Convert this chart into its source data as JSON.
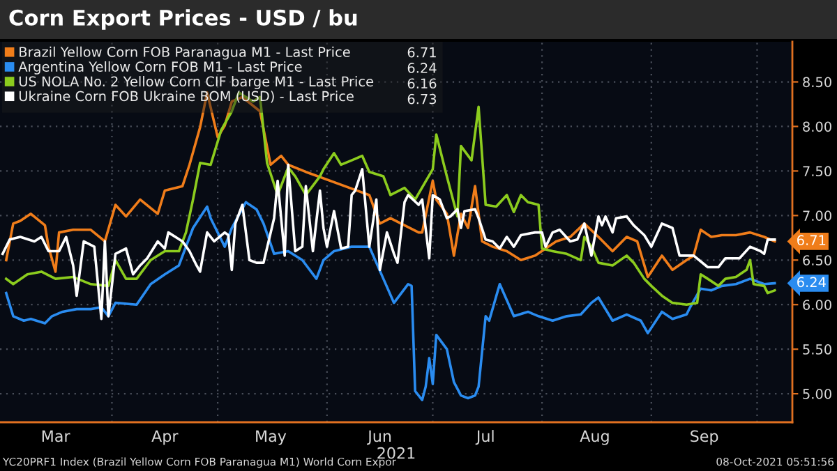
{
  "chart_data": {
    "type": "line",
    "title": "Corn Export Prices - USD / bu",
    "xlabel": "2021",
    "xlim": [
      "2021-02-28T06:00",
      "2021-10-11"
    ],
    "xticks": [
      {
        "value": "2021-03-16",
        "label": "Mar"
      },
      {
        "value": "2021-04-01",
        "label": null
      },
      {
        "value": "2021-04-16",
        "label": "Apr"
      },
      {
        "value": "2021-05-01",
        "label": null
      },
      {
        "value": "2021-05-16",
        "label": "May"
      },
      {
        "value": "2021-06-01",
        "label": null
      },
      {
        "value": "2021-06-16",
        "label": "Jun"
      },
      {
        "value": "2021-07-01",
        "label": null
      },
      {
        "value": "2021-07-16",
        "label": "Jul"
      },
      {
        "value": "2021-08-01",
        "label": null
      },
      {
        "value": "2021-08-16",
        "label": "Aug"
      },
      {
        "value": "2021-09-01",
        "label": null
      },
      {
        "value": "2021-09-16",
        "label": "Sep"
      },
      {
        "value": "2021-10-01",
        "label": null
      }
    ],
    "ylim": [
      4.68,
      8.95
    ],
    "yticks": [
      {
        "value": 5.0,
        "label": "5.00"
      },
      {
        "value": 5.5,
        "label": "5.50"
      },
      {
        "value": 6.0,
        "label": "6.00"
      },
      {
        "value": 6.5,
        "label": "6.50"
      },
      {
        "value": 7.0,
        "label": "7.00"
      },
      {
        "value": 7.5,
        "label": "7.50"
      },
      {
        "value": 8.0,
        "label": "8.00"
      },
      {
        "value": 8.5,
        "label": "8.50"
      }
    ],
    "grid": true,
    "legend": "top left",
    "line_style": "solid",
    "series": [
      {
        "name": "Brazil Yellow Corn FOB Paranagua M1 - Last Price",
        "color": "#f07d1a",
        "x": [
          "2021-03-02",
          "2021-03-04",
          "2021-03-06",
          "2021-03-09",
          "2021-03-13",
          "2021-03-14",
          "2021-03-16",
          "2021-03-17",
          "2021-03-21",
          "2021-03-26",
          "2021-03-30",
          "2021-04-02",
          "2021-04-05",
          "2021-04-09",
          "2021-04-14",
          "2021-04-16",
          "2021-04-21",
          "2021-04-23",
          "2021-04-26",
          "2021-04-28",
          "2021-05-01",
          "2021-05-03",
          "2021-05-05",
          "2021-05-08",
          "2021-05-13",
          "2021-05-16",
          "2021-05-19",
          "2021-05-21",
          "2021-05-26",
          "2021-06-13",
          "2021-06-16",
          "2021-06-19",
          "2021-06-23",
          "2021-06-27",
          "2021-06-28",
          "2021-07-01",
          "2021-07-02",
          "2021-07-05",
          "2021-07-07",
          "2021-07-09",
          "2021-07-11",
          "2021-07-13",
          "2021-07-15",
          "2021-07-18",
          "2021-07-22",
          "2021-07-26",
          "2021-07-30",
          "2021-08-02",
          "2021-08-05",
          "2021-08-09",
          "2021-08-13",
          "2021-08-17",
          "2021-08-21",
          "2021-08-25",
          "2021-08-28",
          "2021-08-31",
          "2021-09-04",
          "2021-09-07",
          "2021-09-11",
          "2021-09-13",
          "2021-09-15",
          "2021-09-18",
          "2021-09-21",
          "2021-09-25",
          "2021-09-29",
          "2021-10-03",
          "2021-10-06"
        ],
        "values": [
          6.5,
          6.91,
          6.94,
          7.02,
          6.89,
          6.65,
          6.37,
          6.81,
          6.84,
          6.84,
          6.71,
          7.12,
          6.99,
          7.18,
          7.02,
          7.28,
          7.33,
          7.57,
          7.99,
          8.38,
          7.88,
          8.01,
          8.28,
          8.33,
          8.17,
          7.57,
          7.67,
          7.57,
          7.49,
          7.23,
          6.91,
          6.97,
          6.89,
          6.81,
          6.81,
          7.39,
          7.18,
          7.02,
          6.55,
          7.02,
          6.86,
          7.33,
          6.71,
          6.65,
          6.6,
          6.5,
          6.55,
          6.63,
          6.71,
          6.76,
          6.91,
          6.76,
          6.6,
          6.76,
          6.71,
          6.31,
          6.55,
          6.39,
          6.5,
          6.55,
          6.84,
          6.76,
          6.78,
          6.78,
          6.81,
          6.76,
          6.71
        ]
      },
      {
        "name": "Argentina Yellow Corn FOB M1 - Last Price",
        "color": "#2a8cf0",
        "x": [
          "2021-03-02",
          "2021-03-04",
          "2021-03-07",
          "2021-03-09",
          "2021-03-13",
          "2021-03-15",
          "2021-03-18",
          "2021-03-22",
          "2021-03-26",
          "2021-03-29",
          "2021-03-31",
          "2021-04-02",
          "2021-04-08",
          "2021-04-12",
          "2021-04-16",
          "2021-04-20",
          "2021-04-24",
          "2021-04-28",
          "2021-04-29",
          "2021-05-03",
          "2021-05-05",
          "2021-05-09",
          "2021-05-12",
          "2021-05-14",
          "2021-05-17",
          "2021-05-21",
          "2021-05-25",
          "2021-05-29",
          "2021-05-31",
          "2021-06-03",
          "2021-06-08",
          "2021-06-13",
          "2021-06-17",
          "2021-06-20",
          "2021-06-24",
          "2021-06-25",
          "2021-06-26",
          "2021-06-28",
          "2021-06-29",
          "2021-06-30",
          "2021-07-01",
          "2021-07-02",
          "2021-07-05",
          "2021-07-07",
          "2021-07-09",
          "2021-07-11",
          "2021-07-13",
          "2021-07-14",
          "2021-07-16",
          "2021-07-17",
          "2021-07-20",
          "2021-07-24",
          "2021-07-28",
          "2021-07-31",
          "2021-08-04",
          "2021-08-08",
          "2021-08-12",
          "2021-08-15",
          "2021-08-17",
          "2021-08-21",
          "2021-08-25",
          "2021-08-29",
          "2021-08-31",
          "2021-09-04",
          "2021-09-07",
          "2021-09-11",
          "2021-09-12",
          "2021-09-15",
          "2021-09-18",
          "2021-09-21",
          "2021-09-25",
          "2021-09-29",
          "2021-10-03",
          "2021-10-06"
        ],
        "values": [
          6.13,
          5.87,
          5.82,
          5.84,
          5.79,
          5.87,
          5.92,
          5.95,
          5.95,
          5.97,
          5.87,
          6.02,
          6.0,
          6.23,
          6.34,
          6.44,
          6.86,
          7.1,
          6.97,
          6.65,
          6.86,
          7.15,
          7.07,
          6.91,
          6.57,
          6.6,
          6.5,
          6.29,
          6.5,
          6.6,
          6.65,
          6.65,
          6.29,
          6.02,
          6.23,
          6.21,
          5.03,
          4.93,
          5.08,
          5.4,
          5.11,
          5.66,
          5.5,
          5.13,
          4.98,
          4.95,
          4.98,
          5.08,
          5.87,
          5.82,
          6.23,
          5.87,
          5.92,
          5.87,
          5.82,
          5.87,
          5.89,
          6.02,
          6.08,
          5.82,
          5.89,
          5.82,
          5.68,
          5.92,
          5.84,
          5.89,
          5.97,
          6.18,
          6.16,
          6.21,
          6.23,
          6.29,
          6.23,
          6.24
        ]
      },
      {
        "name": "US NOLA No. 2 Yellow Corn CIF barge M1 - Last Price",
        "color": "#8ccc1e",
        "x": [
          "2021-03-02",
          "2021-03-04",
          "2021-03-08",
          "2021-03-12",
          "2021-03-16",
          "2021-03-21",
          "2021-03-26",
          "2021-03-31",
          "2021-04-02",
          "2021-04-05",
          "2021-04-08",
          "2021-04-12",
          "2021-04-16",
          "2021-04-20",
          "2021-04-22",
          "2021-04-24",
          "2021-04-26",
          "2021-04-29",
          "2021-05-02",
          "2021-05-05",
          "2021-05-07",
          "2021-05-11",
          "2021-05-13",
          "2021-05-15",
          "2021-05-18",
          "2021-05-21",
          "2021-05-23",
          "2021-05-26",
          "2021-05-30",
          "2021-05-31",
          "2021-06-03",
          "2021-06-05",
          "2021-06-08",
          "2021-06-11",
          "2021-06-13",
          "2021-06-17",
          "2021-06-19",
          "2021-06-23",
          "2021-06-26",
          "2021-07-01",
          "2021-07-02",
          "2021-07-05",
          "2021-07-08",
          "2021-07-09",
          "2021-07-12",
          "2021-07-14",
          "2021-07-16",
          "2021-07-19",
          "2021-07-22",
          "2021-07-24",
          "2021-07-26",
          "2021-07-28",
          "2021-07-31",
          "2021-08-01",
          "2021-08-04",
          "2021-08-08",
          "2021-08-12",
          "2021-08-13",
          "2021-08-15",
          "2021-08-17",
          "2021-08-21",
          "2021-08-25",
          "2021-08-27",
          "2021-08-30",
          "2021-09-01",
          "2021-09-04",
          "2021-09-07",
          "2021-09-11",
          "2021-09-14",
          "2021-09-15",
          "2021-09-17",
          "2021-09-20",
          "2021-09-22",
          "2021-09-25",
          "2021-09-28",
          "2021-09-29",
          "2021-09-30",
          "2021-10-03",
          "2021-10-04",
          "2021-10-06"
        ],
        "values": [
          6.29,
          6.23,
          6.34,
          6.37,
          6.29,
          6.31,
          6.23,
          6.21,
          6.5,
          6.29,
          6.29,
          6.5,
          6.6,
          6.6,
          6.81,
          7.18,
          7.59,
          7.57,
          7.96,
          8.17,
          8.38,
          8.28,
          8.33,
          7.59,
          7.23,
          7.54,
          7.44,
          7.23,
          7.44,
          7.52,
          7.7,
          7.57,
          7.62,
          7.67,
          7.49,
          7.44,
          7.23,
          7.31,
          7.18,
          7.52,
          7.91,
          7.44,
          6.99,
          7.78,
          7.62,
          8.22,
          7.12,
          7.1,
          7.23,
          7.04,
          7.23,
          7.15,
          7.12,
          6.63,
          6.6,
          6.57,
          6.5,
          6.76,
          6.65,
          6.47,
          6.44,
          6.55,
          6.47,
          6.29,
          6.21,
          6.1,
          6.02,
          6.0,
          6.02,
          6.34,
          6.29,
          6.21,
          6.29,
          6.31,
          6.39,
          6.5,
          6.23,
          6.21,
          6.13,
          6.16
        ]
      },
      {
        "name": "Ukraine Corn FOB Ukraine BOM (USD) - Last Price",
        "color": "#ffffff",
        "x": [
          "2021-03-01",
          "2021-03-03",
          "2021-03-06",
          "2021-03-10",
          "2021-03-12",
          "2021-03-14",
          "2021-03-17",
          "2021-03-19",
          "2021-03-21",
          "2021-03-22",
          "2021-03-24",
          "2021-03-27",
          "2021-03-29",
          "2021-03-30",
          "2021-03-31",
          "2021-04-02",
          "2021-04-05",
          "2021-04-07",
          "2021-04-09",
          "2021-04-11",
          "2021-04-14",
          "2021-04-16",
          "2021-04-17",
          "2021-04-21",
          "2021-04-23",
          "2021-04-25",
          "2021-04-26",
          "2021-04-28",
          "2021-04-30",
          "2021-05-03",
          "2021-05-04",
          "2021-05-05",
          "2021-05-06",
          "2021-05-08",
          "2021-05-10",
          "2021-05-12",
          "2021-05-14",
          "2021-05-17",
          "2021-05-18",
          "2021-05-20",
          "2021-05-21",
          "2021-05-23",
          "2021-05-25",
          "2021-05-26",
          "2021-05-28",
          "2021-05-30",
          "2021-05-31",
          "2021-06-01",
          "2021-06-03",
          "2021-06-05",
          "2021-06-07",
          "2021-06-08",
          "2021-06-09",
          "2021-06-11",
          "2021-06-13",
          "2021-06-15",
          "2021-06-16",
          "2021-06-18",
          "2021-06-20",
          "2021-06-21",
          "2021-06-23",
          "2021-06-24",
          "2021-06-27",
          "2021-06-28",
          "2021-06-30",
          "2021-07-01",
          "2021-07-03",
          "2021-07-05",
          "2021-07-06",
          "2021-07-08",
          "2021-07-09",
          "2021-07-10",
          "2021-07-13",
          "2021-07-14",
          "2021-07-16",
          "2021-07-18",
          "2021-07-20",
          "2021-07-22",
          "2021-07-24",
          "2021-07-26",
          "2021-07-30",
          "2021-08-01",
          "2021-08-02",
          "2021-08-04",
          "2021-08-06",
          "2021-08-09",
          "2021-08-11",
          "2021-08-13",
          "2021-08-15",
          "2021-08-17",
          "2021-08-18",
          "2021-08-19",
          "2021-08-21",
          "2021-08-22",
          "2021-08-25",
          "2021-08-27",
          "2021-08-30",
          "2021-09-01",
          "2021-09-04",
          "2021-09-07",
          "2021-09-09",
          "2021-09-13",
          "2021-09-17",
          "2021-09-20",
          "2021-09-22",
          "2021-09-26",
          "2021-09-29",
          "2021-10-02",
          "2021-10-03",
          "2021-10-04",
          "2021-10-06"
        ],
        "values": [
          6.57,
          6.73,
          6.76,
          6.71,
          6.76,
          6.6,
          6.6,
          6.76,
          6.44,
          6.1,
          6.71,
          6.65,
          5.84,
          6.71,
          5.87,
          6.57,
          6.63,
          6.34,
          6.44,
          6.52,
          6.71,
          6.63,
          6.81,
          6.71,
          6.6,
          6.44,
          6.37,
          6.81,
          6.71,
          6.81,
          6.78,
          6.39,
          6.91,
          7.12,
          6.5,
          6.47,
          6.47,
          6.97,
          7.39,
          6.55,
          7.57,
          6.6,
          6.65,
          7.33,
          6.6,
          7.28,
          6.86,
          6.65,
          7.05,
          6.63,
          6.65,
          7.23,
          7.28,
          7.52,
          6.65,
          7.18,
          6.39,
          6.81,
          6.57,
          6.47,
          7.15,
          7.23,
          7.12,
          7.18,
          6.52,
          7.23,
          7.18,
          6.97,
          6.99,
          7.07,
          6.86,
          7.05,
          7.07,
          6.97,
          6.73,
          6.71,
          6.63,
          6.76,
          6.65,
          6.78,
          6.81,
          6.81,
          6.65,
          6.81,
          6.84,
          6.71,
          6.73,
          6.91,
          6.55,
          6.99,
          6.89,
          6.99,
          6.81,
          6.97,
          6.99,
          6.89,
          6.78,
          6.65,
          6.91,
          6.86,
          6.55,
          6.55,
          6.42,
          6.42,
          6.52,
          6.52,
          6.65,
          6.6,
          6.57,
          6.73,
          6.73
        ]
      }
    ],
    "annotations": [
      {
        "text": "6.71",
        "x": "2021-10-06",
        "y": 6.71
      },
      {
        "text": "6.24",
        "x": "2021-10-06",
        "y": 6.24
      },
      "6.71",
      "6.24",
      "6.16",
      "6.73",
      "YC20PRF1 Index (Brazil Yellow Corn FOB Paranagua M1) World Corn Expor",
      "08-Oct-2021 05:51:56"
    ]
  }
}
